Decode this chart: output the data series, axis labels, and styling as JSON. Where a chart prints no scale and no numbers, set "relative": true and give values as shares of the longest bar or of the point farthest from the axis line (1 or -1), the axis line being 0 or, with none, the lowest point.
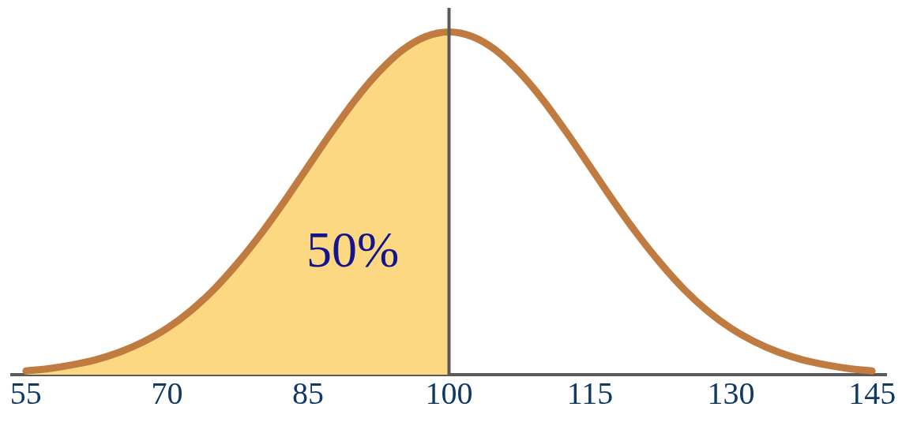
{
  "chart_data": {
    "type": "line",
    "relative": true,
    "xlim": [
      53.5,
      146.5
    ],
    "xticks": [
      55,
      70,
      85,
      100,
      115,
      130,
      145
    ],
    "series": [
      {
        "type": "area",
        "color": "#fcd882",
        "x": [
          55,
          57.5,
          60,
          62.5,
          65,
          67.5,
          70,
          72.5,
          75,
          77.5,
          80,
          82.5,
          85,
          87.5,
          90,
          92.5,
          95,
          97.5,
          100
        ],
        "values": [
          0.011,
          0.018,
          0.029,
          0.044,
          0.066,
          0.096,
          0.135,
          0.186,
          0.249,
          0.325,
          0.411,
          0.506,
          0.607,
          0.707,
          0.801,
          0.882,
          0.946,
          0.986,
          1
        ]
      },
      {
        "color": "#c07c40",
        "x": [
          55,
          57.5,
          60,
          62.5,
          65,
          67.5,
          70,
          72.5,
          75,
          77.5,
          80,
          82.5,
          85,
          87.5,
          90,
          92.5,
          95,
          97.5,
          100,
          102.5,
          105,
          107.5,
          110,
          112.5,
          115,
          117.5,
          120,
          122.5,
          125,
          127.5,
          130,
          132.5,
          135,
          137.5,
          140,
          142.5,
          145
        ],
        "values": [
          0.011,
          0.018,
          0.029,
          0.044,
          0.066,
          0.096,
          0.135,
          0.186,
          0.249,
          0.325,
          0.411,
          0.506,
          0.607,
          0.707,
          0.801,
          0.882,
          0.946,
          0.986,
          1,
          0.986,
          0.946,
          0.882,
          0.801,
          0.707,
          0.607,
          0.506,
          0.411,
          0.325,
          0.249,
          0.186,
          0.135,
          0.096,
          0.066,
          0.044,
          0.029,
          0.018,
          0.011
        ]
      }
    ],
    "ref_lines": [
      {
        "axis": "x",
        "value": 100,
        "color": "#5a5a5a"
      }
    ],
    "annotations": [
      "50%"
    ]
  }
}
